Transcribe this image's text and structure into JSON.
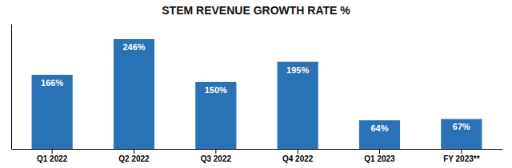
{
  "chart_data": {
    "type": "bar",
    "title": "STEM REVENUE GROWTH RATE %",
    "categories": [
      "Q1 2022",
      "Q2 2022",
      "Q3 2022",
      "Q4 2022",
      "Q1 2023",
      "FY 2023**"
    ],
    "values": [
      166,
      246,
      150,
      195,
      64,
      67
    ],
    "value_labels": [
      "166%",
      "246%",
      "150%",
      "195%",
      "64%",
      "67%"
    ],
    "data_labels": true,
    "color": "#2872B5",
    "ylim": [
      0,
      280
    ],
    "tick_labels": "x"
  }
}
